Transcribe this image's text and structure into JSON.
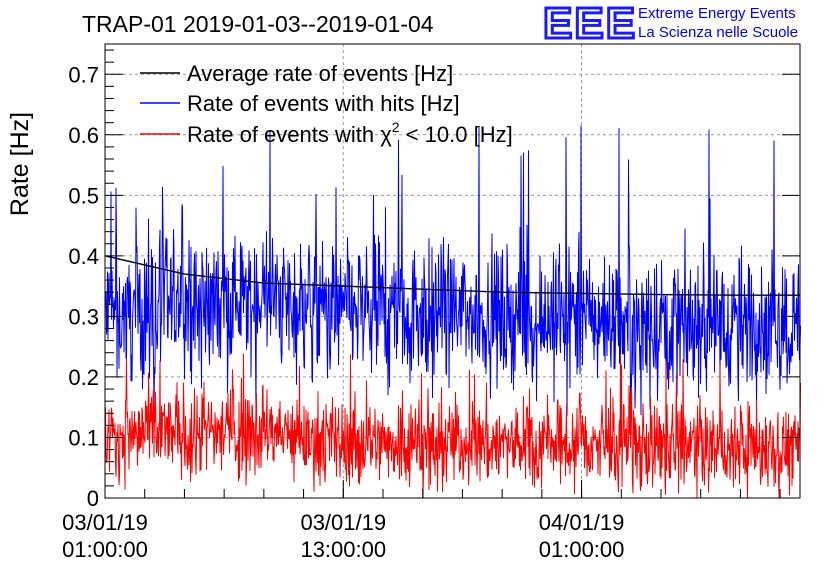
{
  "chart_data": {
    "type": "line",
    "title": "TRAP-01 2019-01-03--2019-01-04",
    "ylabel": "Rate [Hz]",
    "xlabel": "",
    "ylim": [
      0,
      0.75
    ],
    "yticks": [
      "0",
      "0.1",
      "0.2",
      "0.3",
      "0.4",
      "0.5",
      "0.6",
      "0.7"
    ],
    "xlim": [
      "2019-01-03 01:00",
      "2019-01-04 12:00"
    ],
    "xticks": [
      {
        "date": "03/01/19",
        "time": "01:00:00"
      },
      {
        "date": "03/01/19",
        "time": "13:00:00"
      },
      {
        "date": "04/01/19",
        "time": "01:00:00"
      }
    ],
    "grid": true,
    "legend_position": "top-left",
    "series": [
      {
        "name": "Average rate of events [Hz]",
        "color": "#000000",
        "x": [
          "2019-01-03 01:00",
          "2019-01-03 05:00",
          "2019-01-03 09:00",
          "2019-01-03 13:00",
          "2019-01-03 17:00",
          "2019-01-03 21:00",
          "2019-01-04 01:00",
          "2019-01-04 05:00",
          "2019-01-04 09:00",
          "2019-01-04 12:00"
        ],
        "values": [
          0.4,
          0.37,
          0.355,
          0.35,
          0.345,
          0.34,
          0.338,
          0.336,
          0.335,
          0.335
        ]
      },
      {
        "name": "Rate of events with hits [Hz]",
        "color": "#0000ff",
        "x": [
          "2019-01-03 01:00",
          "2019-01-03 05:00",
          "2019-01-03 09:00",
          "2019-01-03 13:00",
          "2019-01-03 17:00",
          "2019-01-03 21:00",
          "2019-01-04 01:00",
          "2019-01-04 05:00",
          "2019-01-04 09:00",
          "2019-01-04 12:00"
        ],
        "values": [
          0.3,
          0.32,
          0.33,
          0.31,
          0.31,
          0.3,
          0.3,
          0.29,
          0.29,
          0.29
        ],
        "min": 0.13,
        "max": 0.62
      },
      {
        "name": "Rate of events with χ² < 10.0 [Hz]",
        "label_prefix": "Rate of events with ",
        "label_chi": "χ",
        "label_sup": "2",
        "label_suffix": " < 10.0 [Hz]",
        "color": "#ff0000",
        "x": [
          "2019-01-03 01:00",
          "2019-01-03 05:00",
          "2019-01-03 09:00",
          "2019-01-03 13:00",
          "2019-01-03 17:00",
          "2019-01-03 21:00",
          "2019-01-04 01:00",
          "2019-01-04 05:00",
          "2019-01-04 09:00",
          "2019-01-04 12:00"
        ],
        "values": [
          0.1,
          0.11,
          0.11,
          0.09,
          0.095,
          0.09,
          0.09,
          0.085,
          0.085,
          0.085
        ],
        "min": 0.0,
        "max": 0.24
      }
    ]
  },
  "logo": {
    "mark": "EEE",
    "line1": "Extreme Energy Events",
    "line2": "La Scienza nelle Scuole"
  }
}
